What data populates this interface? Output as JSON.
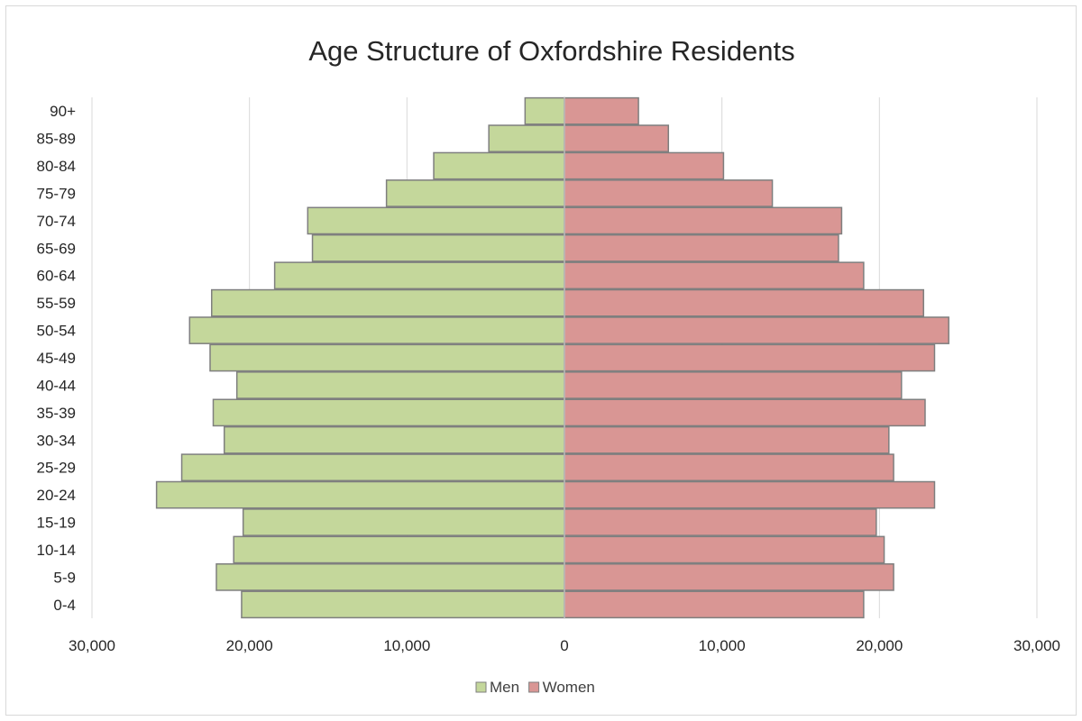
{
  "chart_data": {
    "type": "bar",
    "orientation": "horizontal",
    "layout": "population-pyramid",
    "title": "Age Structure of Oxfordshire Residents",
    "xlabel": "",
    "ylabel": "",
    "categories": [
      "0-4",
      "5-9",
      "10-14",
      "15-19",
      "20-24",
      "25-29",
      "30-34",
      "35-39",
      "40-44",
      "45-49",
      "50-54",
      "55-59",
      "60-64",
      "65-69",
      "70-74",
      "75-79",
      "80-84",
      "85-89",
      "90+"
    ],
    "series": [
      {
        "name": "Men",
        "color": "#c4d79b",
        "side": "left",
        "values": [
          20500,
          22100,
          21000,
          20400,
          25900,
          24300,
          21600,
          22300,
          20800,
          22500,
          23800,
          22400,
          18400,
          16000,
          16300,
          11300,
          8300,
          4800,
          2500
        ]
      },
      {
        "name": "Women",
        "color": "#d99694",
        "side": "right",
        "values": [
          19000,
          20900,
          20300,
          19800,
          23500,
          20900,
          20600,
          22900,
          21400,
          23500,
          24400,
          22800,
          19000,
          17400,
          17600,
          13200,
          10100,
          6600,
          4700
        ]
      }
    ],
    "xlim": [
      -30000,
      30000
    ],
    "x_ticks": [
      -30000,
      -20000,
      -10000,
      0,
      10000,
      20000,
      30000
    ],
    "x_tick_labels": [
      "30,000",
      "20,000",
      "10,000",
      "0",
      "10,000",
      "20,000",
      "30,000"
    ],
    "grid": "vertical",
    "legend": "bottom",
    "gridline_color": "#d9d9d9",
    "bar_border_color": "#7f7f7f"
  }
}
